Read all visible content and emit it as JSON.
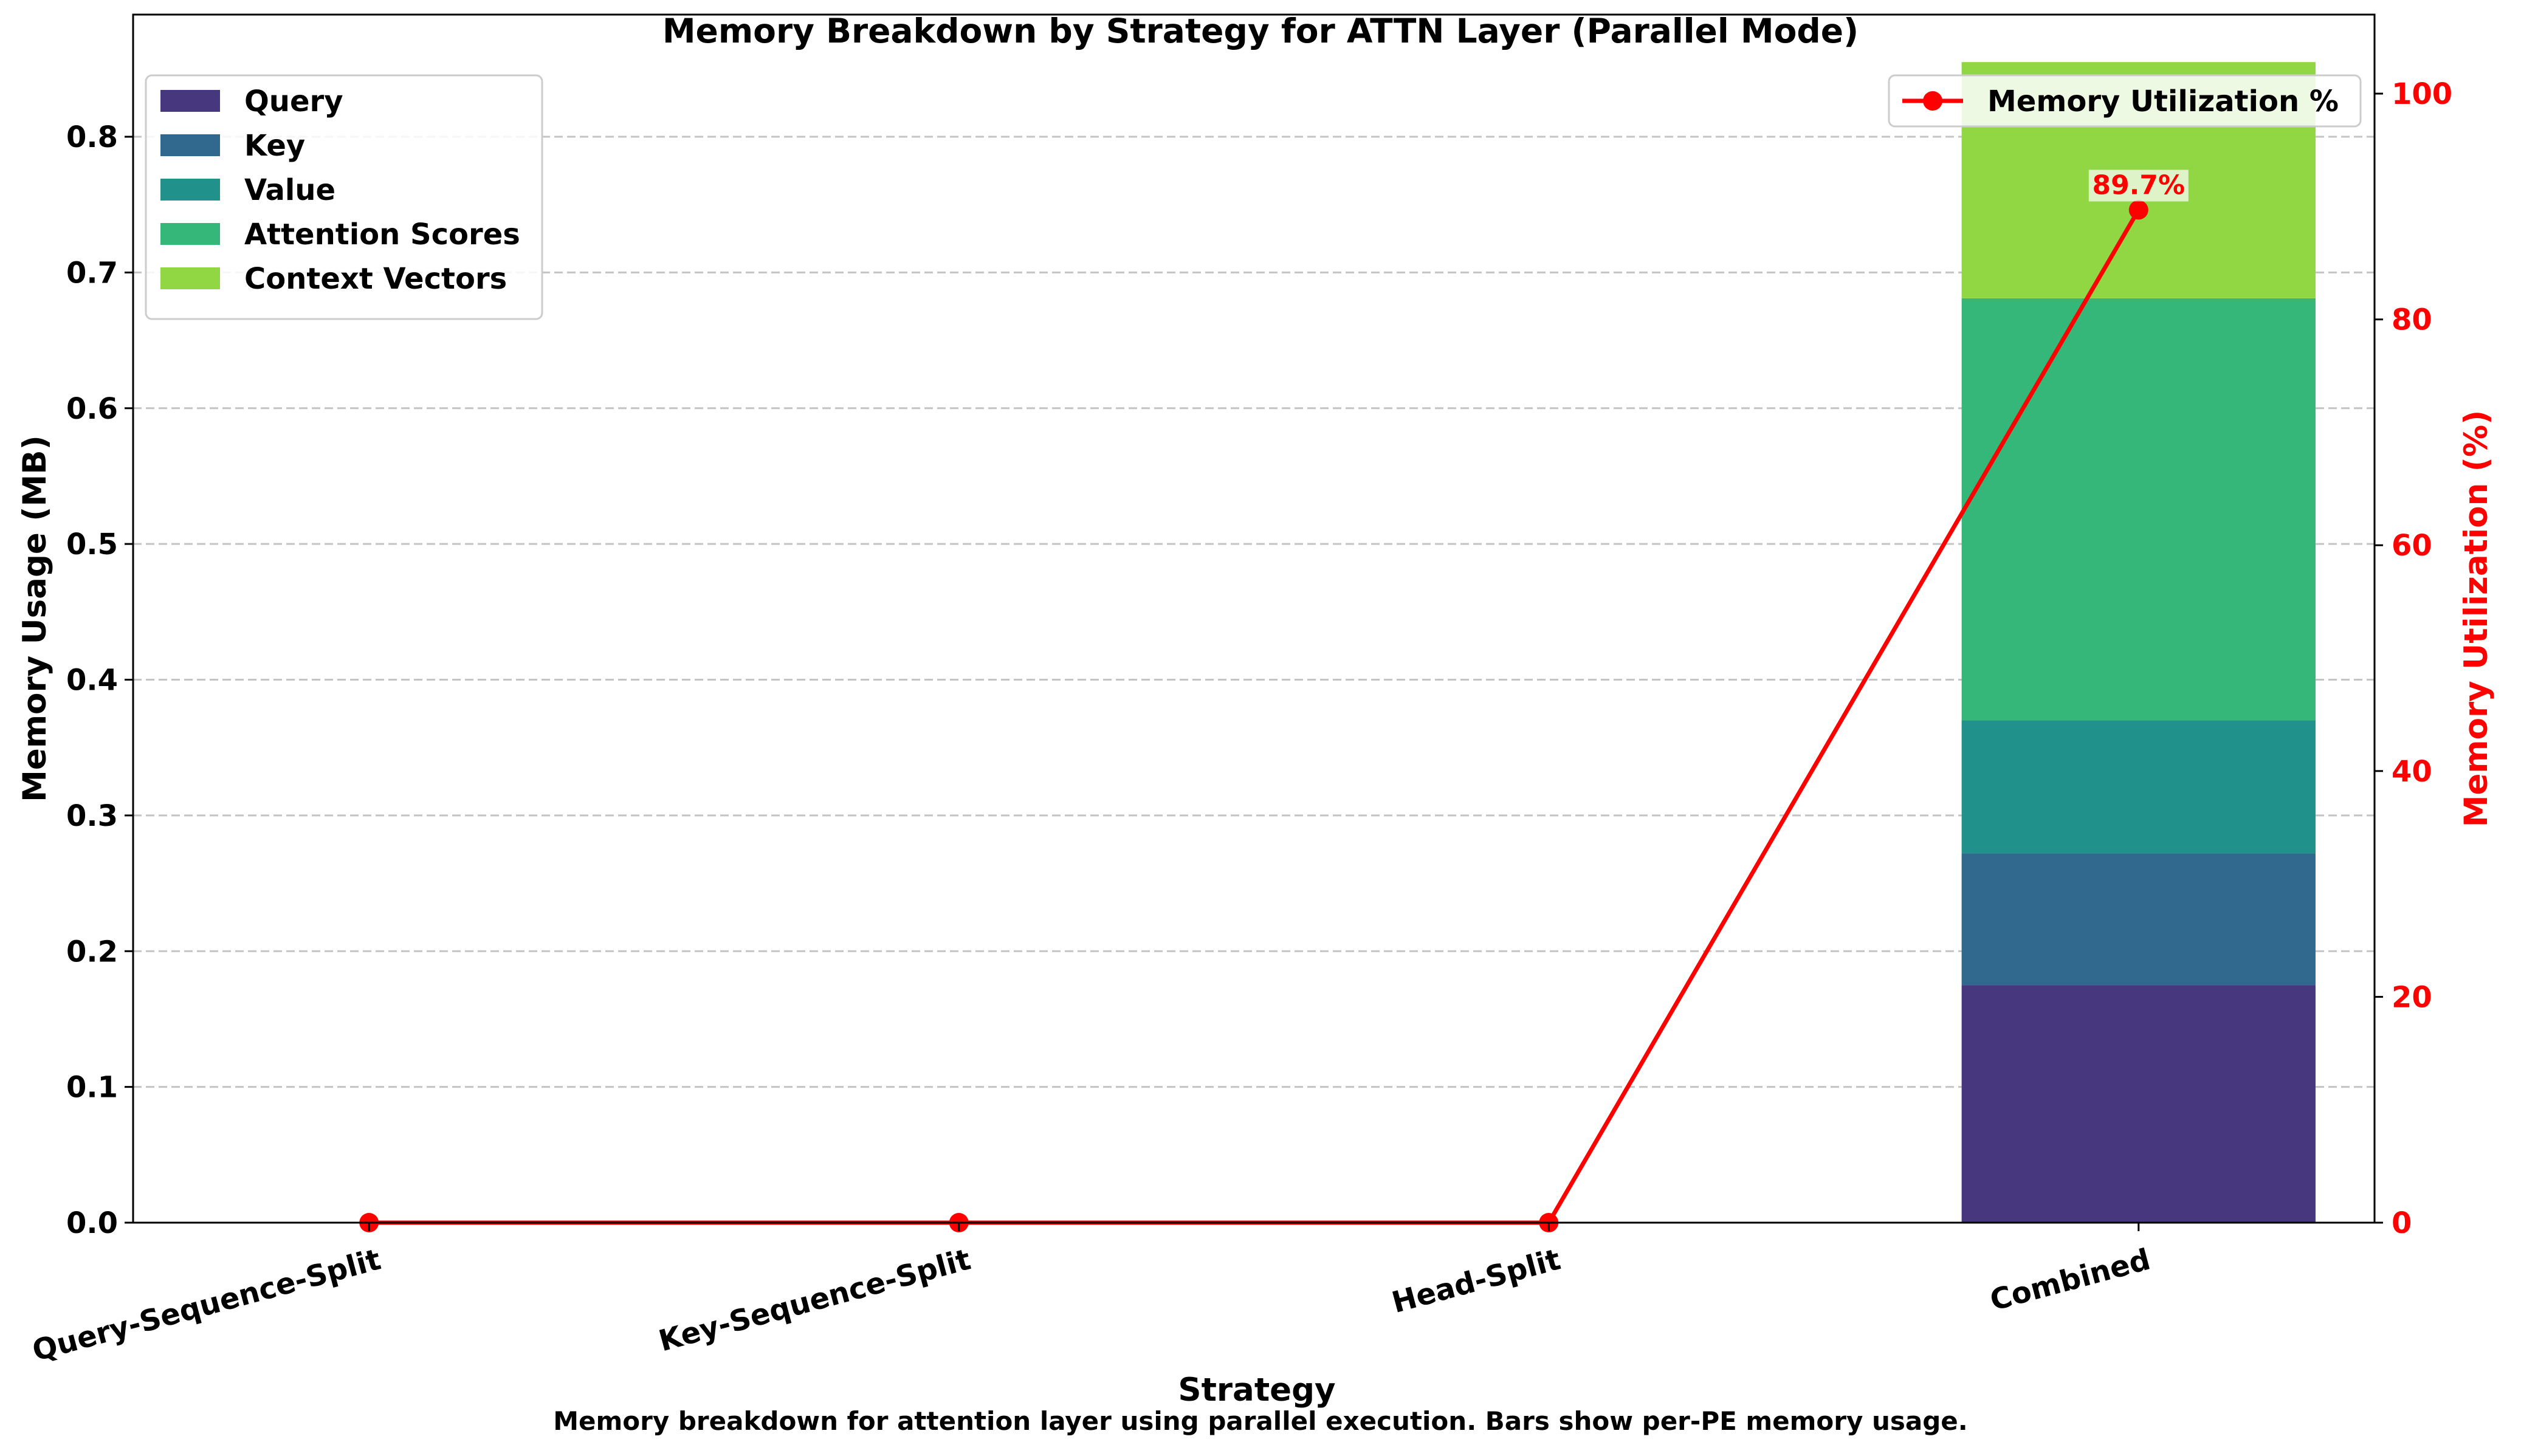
{
  "chart_data": {
    "type": "bar",
    "stacked": true,
    "title": "Memory Breakdown by Strategy for ATTN Layer (Parallel Mode)",
    "xlabel": "Strategy",
    "ylabel": "Memory Usage (MB)",
    "y2label": "Memory Utilization (%)",
    "caption": "Memory breakdown for attention layer using parallel execution. Bars show per-PE memory usage.",
    "categories": [
      "Query-Sequence-Split",
      "Key-Sequence-Split",
      "Head-Split",
      "Combined"
    ],
    "ylim": [
      0,
      0.89
    ],
    "yticks": [
      "0.0",
      "0.1",
      "0.2",
      "0.3",
      "0.4",
      "0.5",
      "0.6",
      "0.7",
      "0.8"
    ],
    "y2lim": [
      0,
      107
    ],
    "y2ticks": [
      "0",
      "20",
      "40",
      "60",
      "80",
      "100"
    ],
    "grid": "horizontal dashed",
    "legend_placement": "top-left",
    "series": [
      {
        "name": "Query",
        "color": "#46377f",
        "values": [
          0,
          0,
          0,
          0.175
        ]
      },
      {
        "name": "Key",
        "color": "#31688e",
        "values": [
          0,
          0,
          0,
          0.097
        ]
      },
      {
        "name": "Value",
        "color": "#21918c",
        "values": [
          0,
          0,
          0,
          0.098
        ]
      },
      {
        "name": "Attention Scores",
        "color": "#35b779",
        "values": [
          0,
          0,
          0,
          0.311
        ]
      },
      {
        "name": "Context Vectors",
        "color": "#90d743",
        "values": [
          0,
          0,
          0,
          0.174
        ]
      }
    ],
    "line_series": {
      "name": "Memory Utilization %",
      "color": "#ff0000",
      "axis": "right",
      "values": [
        0,
        0,
        0,
        89.7
      ],
      "annotation": {
        "index": 3,
        "text": "89.7%"
      },
      "legend_placement": "top-right"
    }
  }
}
